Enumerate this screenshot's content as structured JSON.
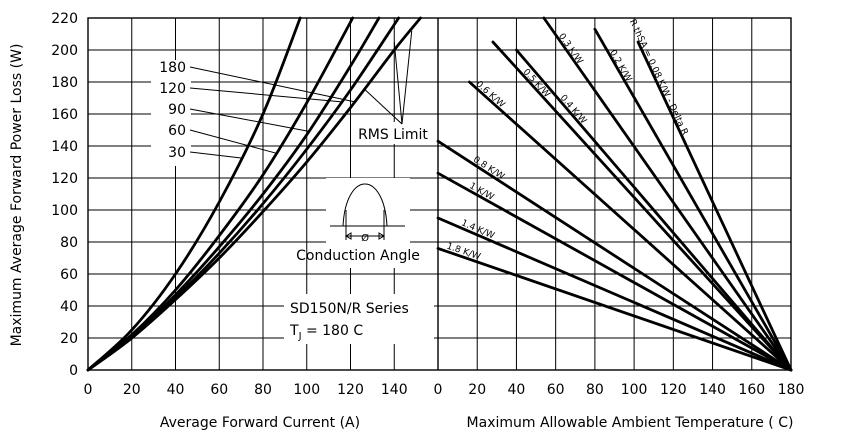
{
  "chart_data": [
    {
      "type": "line",
      "xlabel": "Average Forward Current (A)",
      "ylabel": "Maximum Average Forward Power Loss (W)",
      "xlim": [
        0,
        160
      ],
      "ylim": [
        0,
        220
      ],
      "x_ticks": [
        "0",
        "20",
        "40",
        "60",
        "80",
        "100",
        "120",
        "140"
      ],
      "y_ticks": [
        "0",
        "20",
        "40",
        "60",
        "80",
        "100",
        "120",
        "140",
        "160",
        "180",
        "200",
        "220"
      ],
      "grid": true,
      "series": [
        {
          "name": "30",
          "x": [
            0,
            20,
            40,
            60,
            80,
            97
          ],
          "y": [
            0,
            25,
            60,
            105,
            160,
            220
          ]
        },
        {
          "name": "60",
          "x": [
            0,
            20,
            40,
            60,
            80,
            100,
            121
          ],
          "y": [
            0,
            22,
            50,
            84,
            122,
            167,
            220
          ]
        },
        {
          "name": "90",
          "x": [
            0,
            20,
            40,
            60,
            80,
            100,
            120,
            133
          ],
          "y": [
            0,
            21,
            47,
            77,
            110,
            147,
            190,
            220
          ]
        },
        {
          "name": "120",
          "x": [
            0,
            20,
            40,
            60,
            80,
            100,
            120,
            142
          ],
          "y": [
            0,
            20,
            45,
            73,
            104,
            138,
            175,
            220
          ]
        },
        {
          "name": "180",
          "x": [
            0,
            20,
            40,
            60,
            80,
            100,
            120,
            140,
            152
          ],
          "y": [
            0,
            20,
            44,
            70,
            99,
            130,
            164,
            200,
            220
          ]
        }
      ],
      "curve_labels": [
        "180",
        "120",
        "90",
        "60",
        "30"
      ],
      "annotations": {
        "rms_limit": "RMS Limit",
        "conduction_symbol": "Ø",
        "conduction_angle": "Conduction Angle",
        "series_name": "SD150N/R Series",
        "tj_main": "T",
        "tj_sub": "J",
        "tj_value": " = 180 C"
      }
    },
    {
      "type": "line",
      "xlabel": "Maximum Allowable Ambient Temperature ( C)",
      "ylabel": "",
      "xlim": [
        0,
        180
      ],
      "ylim": [
        0,
        220
      ],
      "x_ticks": [
        "0",
        "20",
        "40",
        "60",
        "80",
        "100",
        "120",
        "140",
        "160",
        "180"
      ],
      "grid": true,
      "series": [
        {
          "name": "R thSA = 0.08 K/W - Delta R",
          "x": [
            180,
            102
          ],
          "y": [
            0,
            205
          ]
        },
        {
          "name": "0.2 K/W",
          "x": [
            180,
            80
          ],
          "y": [
            0,
            213
          ]
        },
        {
          "name": "0.3 K/W",
          "x": [
            180,
            54
          ],
          "y": [
            0,
            220
          ]
        },
        {
          "name": "0.4 K/W",
          "x": [
            180,
            40
          ],
          "y": [
            0,
            200
          ]
        },
        {
          "name": "0.5 K/W",
          "x": [
            180,
            28
          ],
          "y": [
            0,
            205
          ]
        },
        {
          "name": "0.6 K/W",
          "x": [
            180,
            16
          ],
          "y": [
            0,
            180
          ]
        },
        {
          "name": "0.8 K/W",
          "x": [
            180,
            0
          ],
          "y": [
            0,
            143
          ]
        },
        {
          "name": "1 K/W",
          "x": [
            180,
            0
          ],
          "y": [
            0,
            123
          ]
        },
        {
          "name": "1.4 K/W",
          "x": [
            180,
            0
          ],
          "y": [
            0,
            95
          ]
        },
        {
          "name": "1.8 K/W",
          "x": [
            180,
            0
          ],
          "y": [
            0,
            76
          ]
        }
      ]
    }
  ]
}
